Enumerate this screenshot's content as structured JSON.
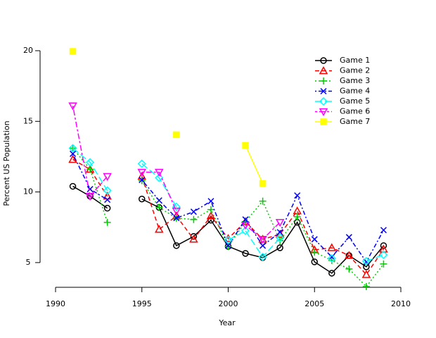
{
  "chart_data": {
    "type": "line",
    "xlabel": "Year",
    "ylabel": "Percent US Population",
    "x": [
      1991,
      1992,
      1993,
      1994,
      1995,
      1996,
      1997,
      1998,
      1999,
      2000,
      2001,
      2002,
      2003,
      2004,
      2005,
      2006,
      2007,
      2008,
      2009
    ],
    "xlim": [
      1990,
      2010
    ],
    "xticks": [
      1990,
      1995,
      2000,
      2005,
      2010
    ],
    "ylim": [
      3.3,
      20
    ],
    "yticks": [
      5,
      10,
      15,
      20
    ],
    "legend": "top-right",
    "series": [
      {
        "name": "Game 1",
        "color": "#000000",
        "marker": "circle",
        "dash": "solid",
        "values": [
          10.4,
          9.7,
          8.85,
          null,
          9.5,
          8.9,
          6.2,
          6.85,
          8.0,
          6.15,
          5.65,
          5.35,
          6.05,
          7.85,
          5.05,
          4.25,
          5.5,
          4.7,
          6.2
        ]
      },
      {
        "name": "Game 2",
        "color": "#ff0000",
        "marker": "triangle",
        "dash": "dashed",
        "values": [
          12.3,
          11.6,
          9.7,
          null,
          11.1,
          7.35,
          8.3,
          6.65,
          8.3,
          6.7,
          7.9,
          6.65,
          7.0,
          8.65,
          5.9,
          6.05,
          5.5,
          4.15,
          5.95
        ]
      },
      {
        "name": "Game 3",
        "color": "#00cd00",
        "marker": "plus",
        "dash": "dotted",
        "values": [
          13.1,
          11.6,
          7.85,
          null,
          10.8,
          8.9,
          8.15,
          8.05,
          8.75,
          6.15,
          7.9,
          9.35,
          6.55,
          8.25,
          5.75,
          5.15,
          4.55,
          3.3,
          4.9
        ]
      },
      {
        "name": "Game 4",
        "color": "#0000ff",
        "marker": "x",
        "dash": "dotdash",
        "values": [
          12.7,
          10.2,
          9.45,
          null,
          10.85,
          9.4,
          8.15,
          8.6,
          9.35,
          6.2,
          8.05,
          6.2,
          7.15,
          9.75,
          6.65,
          5.4,
          6.8,
          5.05,
          7.3
        ]
      },
      {
        "name": "Game 5",
        "color": "#00ffff",
        "marker": "diamond",
        "dash": "longdash",
        "values": [
          13.1,
          12.1,
          10.1,
          null,
          12.0,
          11.0,
          8.95,
          null,
          null,
          6.6,
          7.25,
          5.4,
          6.75,
          null,
          null,
          5.3,
          null,
          5.1,
          5.55
        ]
      },
      {
        "name": "Game 6",
        "color": "#ff00ff",
        "marker": "triangle-down",
        "dash": "twodash",
        "values": [
          16.1,
          9.7,
          11.1,
          null,
          11.4,
          11.4,
          8.65,
          null,
          null,
          null,
          7.65,
          6.65,
          7.85,
          null,
          null,
          null,
          null,
          null,
          null
        ]
      },
      {
        "name": "Game 7",
        "color": "#ffff00",
        "marker": "square",
        "dash": "solid",
        "values": [
          19.95,
          null,
          null,
          null,
          null,
          null,
          14.05,
          null,
          null,
          null,
          13.3,
          10.6,
          null,
          null,
          null,
          null,
          null,
          null,
          null
        ]
      }
    ]
  }
}
